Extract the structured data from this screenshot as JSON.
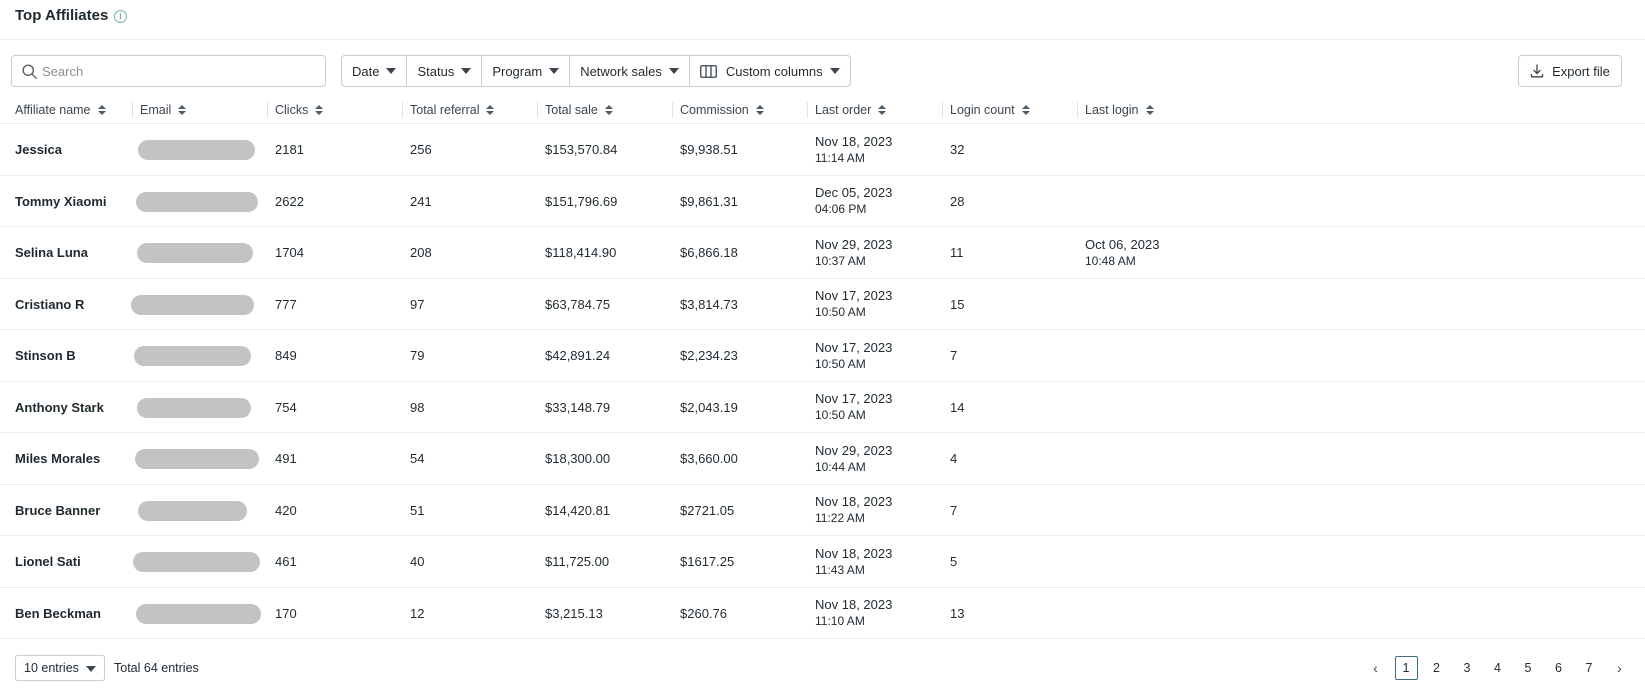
{
  "header": {
    "title": "Top Affiliates",
    "info_icon": "info-icon"
  },
  "search": {
    "placeholder": "Search",
    "value": ""
  },
  "filters": [
    {
      "label": "Date"
    },
    {
      "label": "Status"
    },
    {
      "label": "Program"
    },
    {
      "label": "Network sales"
    },
    {
      "label": "Custom columns",
      "icon": "columns-icon"
    }
  ],
  "export": {
    "label": "Export file",
    "icon": "download-icon"
  },
  "table": {
    "columns": [
      "Affiliate name",
      "Email",
      "Clicks",
      "Total referral",
      "Total sale",
      "Commission",
      "Last order",
      "Login count",
      "Last login"
    ],
    "rows": [
      {
        "name": "Jessica",
        "clicks": "2181",
        "referral": "256",
        "sale": "$153,570.84",
        "commission": "$9,938.51",
        "order_date": "Nov 18, 2023",
        "order_time": "11:14 AM",
        "logins": "32",
        "login_date": "",
        "login_time": ""
      },
      {
        "name": "Tommy Xiaomi",
        "clicks": "2622",
        "referral": "241",
        "sale": "$151,796.69",
        "commission": "$9,861.31",
        "order_date": "Dec 05, 2023",
        "order_time": "04:06 PM",
        "logins": "28",
        "login_date": "",
        "login_time": ""
      },
      {
        "name": "Selina Luna",
        "clicks": "1704",
        "referral": "208",
        "sale": "$118,414.90",
        "commission": "$6,866.18",
        "order_date": "Nov 29, 2023",
        "order_time": "10:37 AM",
        "logins": "11",
        "login_date": "Oct 06, 2023",
        "login_time": "10:48 AM"
      },
      {
        "name": "Cristiano R",
        "clicks": "777",
        "referral": "97",
        "sale": "$63,784.75",
        "commission": "$3,814.73",
        "order_date": "Nov 17, 2023",
        "order_time": "10:50 AM",
        "logins": "15",
        "login_date": "",
        "login_time": ""
      },
      {
        "name": "Stinson B",
        "clicks": "849",
        "referral": "79",
        "sale": "$42,891.24",
        "commission": "$2,234.23",
        "order_date": "Nov 17, 2023",
        "order_time": "10:50 AM",
        "logins": "7",
        "login_date": "",
        "login_time": ""
      },
      {
        "name": "Anthony Stark",
        "clicks": "754",
        "referral": "98",
        "sale": "$33,148.79",
        "commission": "$2,043.19",
        "order_date": "Nov 17, 2023",
        "order_time": "10:50 AM",
        "logins": "14",
        "login_date": "",
        "login_time": ""
      },
      {
        "name": "Miles Morales",
        "clicks": "491",
        "referral": "54",
        "sale": "$18,300.00",
        "commission": "$3,660.00",
        "order_date": "Nov 29, 2023",
        "order_time": "10:44 AM",
        "logins": "4",
        "login_date": "",
        "login_time": ""
      },
      {
        "name": "Bruce Banner",
        "clicks": "420",
        "referral": "51",
        "sale": "$14,420.81",
        "commission": "$2721.05",
        "order_date": "Nov 18, 2023",
        "order_time": "11:22 AM",
        "logins": "7",
        "login_date": "",
        "login_time": ""
      },
      {
        "name": "Lionel Sati",
        "clicks": "461",
        "referral": "40",
        "sale": "$11,725.00",
        "commission": "$1617.25",
        "order_date": "Nov 18, 2023",
        "order_time": "11:43 AM",
        "logins": "5",
        "login_date": "",
        "login_time": ""
      },
      {
        "name": "Ben Beckman",
        "clicks": "170",
        "referral": "12",
        "sale": "$3,215.13",
        "commission": "$260.76",
        "order_date": "Nov 18, 2023",
        "order_time": "11:10 AM",
        "logins": "13",
        "login_date": "",
        "login_time": ""
      }
    ]
  },
  "footer": {
    "entries_label": "10 entries",
    "total_label": "Total 64 entries",
    "pages": [
      "1",
      "2",
      "3",
      "4",
      "5",
      "6",
      "7"
    ],
    "current_page": "1",
    "prev_glyph": "‹",
    "next_glyph": "›"
  }
}
